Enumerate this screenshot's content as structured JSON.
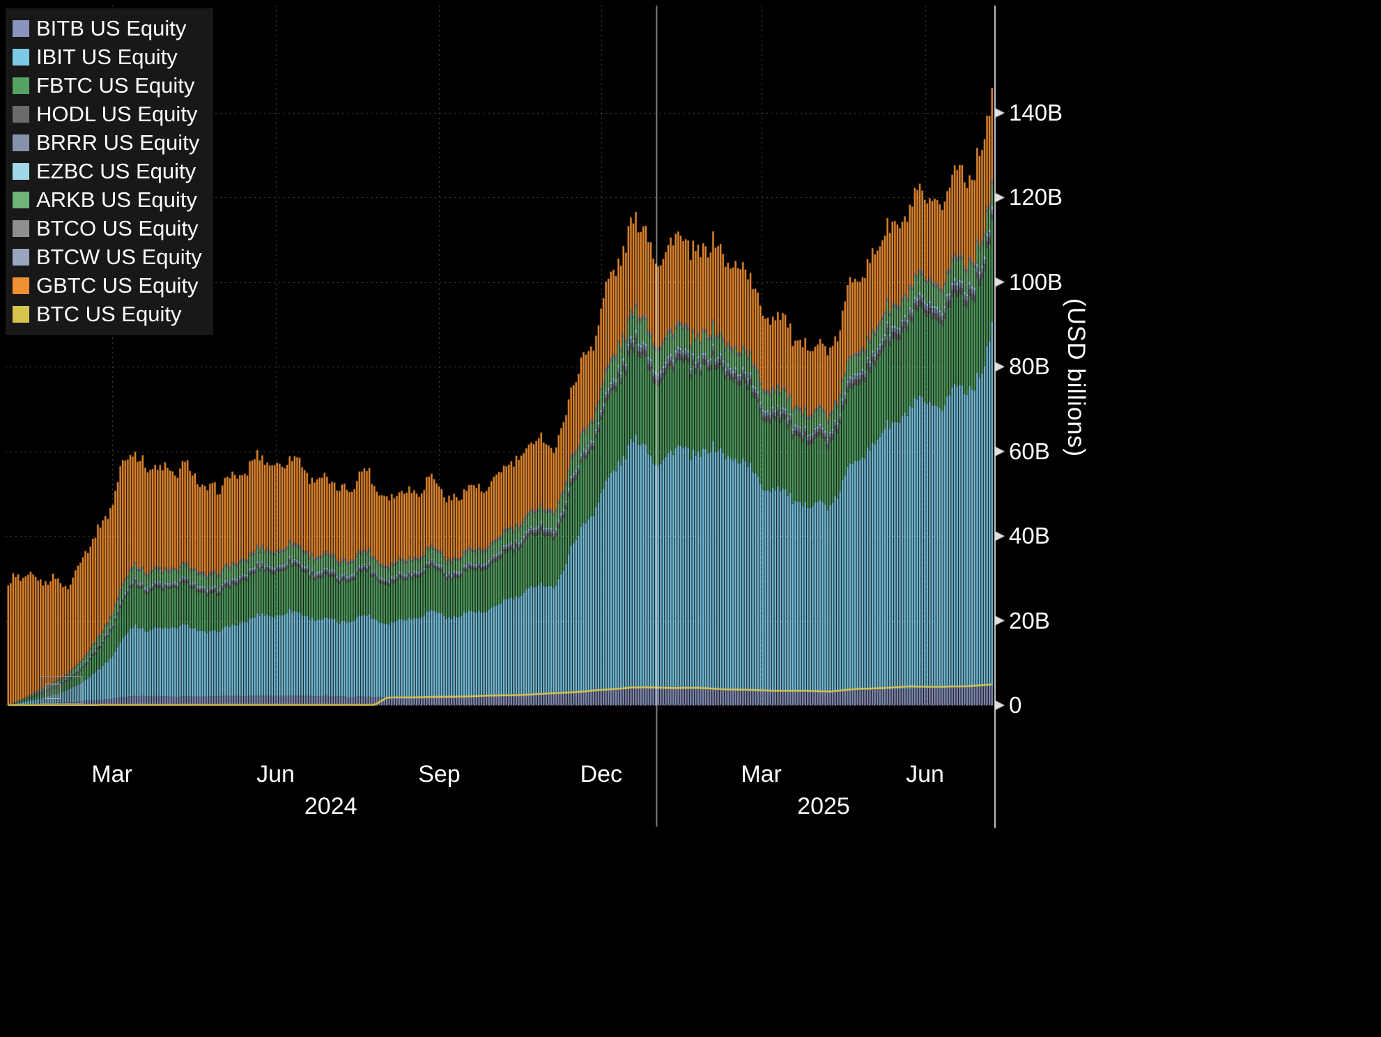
{
  "y_axis": {
    "title": "(USD billions)",
    "ticks": [
      {
        "label": "0",
        "value": 0
      },
      {
        "label": "20B",
        "value": 20
      },
      {
        "label": "40B",
        "value": 40
      },
      {
        "label": "60B",
        "value": 60
      },
      {
        "label": "80B",
        "value": 80
      },
      {
        "label": "100B",
        "value": 100
      },
      {
        "label": "120B",
        "value": 120
      },
      {
        "label": "140B",
        "value": 140
      }
    ]
  },
  "x_axis": {
    "month_ticks": [
      {
        "label": "Mar",
        "date": "2024-03-01"
      },
      {
        "label": "Jun",
        "date": "2024-06-01"
      },
      {
        "label": "Sep",
        "date": "2024-09-01"
      },
      {
        "label": "Dec",
        "date": "2024-12-01"
      },
      {
        "label": "Mar",
        "date": "2025-03-01"
      },
      {
        "label": "Jun",
        "date": "2025-06-01"
      }
    ],
    "year_labels": [
      {
        "label": "2024",
        "date": "2024-07-02"
      },
      {
        "label": "2025",
        "date": "2025-04-05"
      }
    ],
    "year_divider_date": "2025-01-01"
  },
  "chart_data": {
    "type": "bar",
    "stacked": true,
    "unit": "USD billions",
    "x_start": "2024-01-02",
    "x_end": "2025-07-08",
    "ylim": [
      0,
      165
    ],
    "grid": true,
    "legend_position": "top-left",
    "series": [
      {
        "name": "BITB US Equity",
        "ticker": "BITB",
        "color": "#8a94bd",
        "render": "stack",
        "keyframes": [
          [
            "2024-01-02",
            0.0
          ],
          [
            "2024-01-11",
            0.2
          ],
          [
            "2024-02-01",
            0.6
          ],
          [
            "2024-03-01",
            1.5
          ],
          [
            "2024-03-13",
            2.2
          ],
          [
            "2024-04-19",
            2.0
          ],
          [
            "2024-06-07",
            2.3
          ],
          [
            "2024-07-05",
            2.0
          ],
          [
            "2024-09-06",
            2.0
          ],
          [
            "2024-10-21",
            2.5
          ],
          [
            "2024-11-22",
            3.4
          ],
          [
            "2024-12-17",
            4.2
          ],
          [
            "2025-01-21",
            4.0
          ],
          [
            "2025-02-28",
            3.4
          ],
          [
            "2025-04-08",
            3.2
          ],
          [
            "2025-05-22",
            4.0
          ],
          [
            "2025-07-08",
            4.4
          ]
        ]
      },
      {
        "name": "IBIT US Equity",
        "ticker": "IBIT",
        "color": "#7dc9e6",
        "render": "stack",
        "keyframes": [
          [
            "2024-01-02",
            0.0
          ],
          [
            "2024-01-11",
            0.5
          ],
          [
            "2024-02-01",
            2.5
          ],
          [
            "2024-02-15",
            5.0
          ],
          [
            "2024-03-01",
            10.0
          ],
          [
            "2024-03-13",
            17.0
          ],
          [
            "2024-03-20",
            15.5
          ],
          [
            "2024-04-08",
            17.5
          ],
          [
            "2024-04-19",
            15.5
          ],
          [
            "2024-05-01",
            15.0
          ],
          [
            "2024-05-21",
            19.0
          ],
          [
            "2024-06-07",
            20.5
          ],
          [
            "2024-06-24",
            18.0
          ],
          [
            "2024-07-05",
            17.0
          ],
          [
            "2024-07-22",
            19.5
          ],
          [
            "2024-08-05",
            18.0
          ],
          [
            "2024-08-26",
            19.5
          ],
          [
            "2024-09-06",
            18.5
          ],
          [
            "2024-09-27",
            21.0
          ],
          [
            "2024-10-21",
            24.5
          ],
          [
            "2024-11-05",
            25.0
          ],
          [
            "2024-11-22",
            42.0
          ],
          [
            "2024-12-17",
            58.0
          ],
          [
            "2024-12-30",
            52.5
          ],
          [
            "2025-01-21",
            58.0
          ],
          [
            "2025-02-07",
            57.0
          ],
          [
            "2025-02-28",
            48.0
          ],
          [
            "2025-03-18",
            46.5
          ],
          [
            "2025-04-08",
            44.5
          ],
          [
            "2025-04-23",
            53.0
          ],
          [
            "2025-05-12",
            62.0
          ],
          [
            "2025-05-22",
            69.0
          ],
          [
            "2025-06-06",
            67.0
          ],
          [
            "2025-06-23",
            68.5
          ],
          [
            "2025-07-03",
            74.0
          ],
          [
            "2025-07-08",
            83.0
          ]
        ]
      },
      {
        "name": "FBTC US Equity",
        "ticker": "FBTC",
        "color": "#55a263",
        "render": "stack",
        "keyframes": [
          [
            "2024-01-02",
            0.0
          ],
          [
            "2024-01-11",
            0.3
          ],
          [
            "2024-02-01",
            2.0
          ],
          [
            "2024-02-15",
            3.5
          ],
          [
            "2024-03-01",
            6.5
          ],
          [
            "2024-03-13",
            10.0
          ],
          [
            "2024-03-20",
            9.0
          ],
          [
            "2024-04-08",
            10.0
          ],
          [
            "2024-04-19",
            9.0
          ],
          [
            "2024-05-01",
            8.5
          ],
          [
            "2024-05-21",
            10.5
          ],
          [
            "2024-06-07",
            11.0
          ],
          [
            "2024-06-24",
            9.8
          ],
          [
            "2024-07-05",
            9.2
          ],
          [
            "2024-07-22",
            10.5
          ],
          [
            "2024-08-05",
            9.5
          ],
          [
            "2024-08-26",
            10.0
          ],
          [
            "2024-09-06",
            9.0
          ],
          [
            "2024-09-27",
            10.5
          ],
          [
            "2024-10-21",
            11.8
          ],
          [
            "2024-11-05",
            11.5
          ],
          [
            "2024-11-22",
            16.0
          ],
          [
            "2024-12-17",
            21.0
          ],
          [
            "2024-12-30",
            19.0
          ],
          [
            "2025-01-21",
            20.5
          ],
          [
            "2025-02-07",
            19.5
          ],
          [
            "2025-02-28",
            16.5
          ],
          [
            "2025-03-18",
            16.0
          ],
          [
            "2025-04-08",
            15.0
          ],
          [
            "2025-04-23",
            17.5
          ],
          [
            "2025-05-12",
            19.5
          ],
          [
            "2025-05-22",
            21.0
          ],
          [
            "2025-06-06",
            20.5
          ],
          [
            "2025-06-23",
            20.5
          ],
          [
            "2025-07-08",
            23.0
          ]
        ]
      },
      {
        "name": "HODL US Equity",
        "ticker": "HODL",
        "color": "#6b6b6b",
        "render": "stack",
        "keyframes": [
          [
            "2024-01-02",
            0.0
          ],
          [
            "2024-01-11",
            0.1
          ],
          [
            "2024-03-13",
            0.5
          ],
          [
            "2024-06-07",
            0.6
          ],
          [
            "2024-09-06",
            0.5
          ],
          [
            "2024-11-22",
            0.9
          ],
          [
            "2024-12-17",
            1.3
          ],
          [
            "2025-02-28",
            1.1
          ],
          [
            "2025-04-08",
            1.1
          ],
          [
            "2025-05-22",
            1.4
          ],
          [
            "2025-07-08",
            1.5
          ]
        ]
      },
      {
        "name": "BRRR US Equity",
        "ticker": "BRRR",
        "color": "#8793ad",
        "render": "stack",
        "keyframes": [
          [
            "2024-01-02",
            0.0
          ],
          [
            "2024-01-11",
            0.1
          ],
          [
            "2024-03-13",
            0.5
          ],
          [
            "2024-06-07",
            0.55
          ],
          [
            "2024-09-06",
            0.5
          ],
          [
            "2024-11-22",
            0.8
          ],
          [
            "2024-12-17",
            1.1
          ],
          [
            "2025-02-28",
            1.0
          ],
          [
            "2025-04-08",
            0.9
          ],
          [
            "2025-05-22",
            1.1
          ],
          [
            "2025-07-08",
            1.2
          ]
        ]
      },
      {
        "name": "EZBC US Equity",
        "ticker": "EZBC",
        "color": "#9fd8e8",
        "render": "stack",
        "keyframes": [
          [
            "2024-01-02",
            0.0
          ],
          [
            "2024-01-11",
            0.05
          ],
          [
            "2024-03-13",
            0.35
          ],
          [
            "2024-06-07",
            0.4
          ],
          [
            "2024-09-06",
            0.35
          ],
          [
            "2024-11-22",
            0.5
          ],
          [
            "2024-12-17",
            0.65
          ],
          [
            "2025-02-28",
            0.55
          ],
          [
            "2025-04-08",
            0.5
          ],
          [
            "2025-05-22",
            0.6
          ],
          [
            "2025-07-08",
            0.65
          ]
        ]
      },
      {
        "name": "ARKB US Equity",
        "ticker": "ARKB",
        "color": "#6fb577",
        "render": "stack",
        "keyframes": [
          [
            "2024-01-02",
            0.0
          ],
          [
            "2024-01-11",
            0.2
          ],
          [
            "2024-02-01",
            0.6
          ],
          [
            "2024-03-01",
            2.0
          ],
          [
            "2024-03-13",
            2.9
          ],
          [
            "2024-04-19",
            2.7
          ],
          [
            "2024-06-07",
            3.2
          ],
          [
            "2024-07-05",
            2.8
          ],
          [
            "2024-09-06",
            2.6
          ],
          [
            "2024-10-21",
            3.2
          ],
          [
            "2024-11-22",
            4.2
          ],
          [
            "2024-12-17",
            5.2
          ],
          [
            "2025-01-21",
            4.9
          ],
          [
            "2025-02-28",
            4.0
          ],
          [
            "2025-04-08",
            3.8
          ],
          [
            "2025-05-22",
            4.6
          ],
          [
            "2025-07-08",
            5.0
          ]
        ]
      },
      {
        "name": "BTCO US Equity",
        "ticker": "BTCO",
        "color": "#8f8f8f",
        "render": "stack",
        "keyframes": [
          [
            "2024-01-02",
            0.0
          ],
          [
            "2024-01-11",
            0.1
          ],
          [
            "2024-03-13",
            0.4
          ],
          [
            "2024-06-07",
            0.45
          ],
          [
            "2024-09-06",
            0.4
          ],
          [
            "2024-11-22",
            0.5
          ],
          [
            "2024-12-17",
            0.6
          ],
          [
            "2025-02-28",
            0.5
          ],
          [
            "2025-04-08",
            0.45
          ],
          [
            "2025-05-22",
            0.55
          ],
          [
            "2025-07-08",
            0.6
          ]
        ]
      },
      {
        "name": "BTCW US Equity",
        "ticker": "BTCW",
        "color": "#9aa6c0",
        "render": "stack",
        "keyframes": [
          [
            "2024-01-02",
            0.0
          ],
          [
            "2024-01-11",
            0.05
          ],
          [
            "2024-03-13",
            0.2
          ],
          [
            "2024-06-07",
            0.25
          ],
          [
            "2024-09-06",
            0.2
          ],
          [
            "2024-11-22",
            0.3
          ],
          [
            "2024-12-17",
            0.35
          ],
          [
            "2025-02-28",
            0.3
          ],
          [
            "2025-04-08",
            0.28
          ],
          [
            "2025-05-22",
            0.33
          ],
          [
            "2025-07-08",
            0.35
          ]
        ]
      },
      {
        "name": "GBTC US Equity",
        "ticker": "GBTC",
        "color": "#ef8f33",
        "render": "stack",
        "keyframes": [
          [
            "2024-01-02",
            27.0
          ],
          [
            "2024-01-11",
            28.5
          ],
          [
            "2024-01-23",
            25.0
          ],
          [
            "2024-02-06",
            22.0
          ],
          [
            "2024-02-15",
            24.5
          ],
          [
            "2024-02-26",
            25.5
          ],
          [
            "2024-03-13",
            27.0
          ],
          [
            "2024-03-20",
            24.0
          ],
          [
            "2024-04-08",
            24.0
          ],
          [
            "2024-04-19",
            21.0
          ],
          [
            "2024-05-01",
            19.0
          ],
          [
            "2024-05-21",
            21.5
          ],
          [
            "2024-06-07",
            20.5
          ],
          [
            "2024-06-24",
            18.0
          ],
          [
            "2024-07-05",
            16.0
          ],
          [
            "2024-07-22",
            18.5
          ],
          [
            "2024-08-05",
            16.0
          ],
          [
            "2024-08-26",
            15.5
          ],
          [
            "2024-09-06",
            14.0
          ],
          [
            "2024-09-27",
            14.8
          ],
          [
            "2024-10-21",
            15.8
          ],
          [
            "2024-11-05",
            14.5
          ],
          [
            "2024-11-22",
            18.0
          ],
          [
            "2024-12-17",
            21.0
          ],
          [
            "2024-12-30",
            19.5
          ],
          [
            "2025-01-21",
            21.0
          ],
          [
            "2025-02-07",
            20.0
          ],
          [
            "2025-02-28",
            17.0
          ],
          [
            "2025-03-18",
            16.5
          ],
          [
            "2025-04-08",
            15.0
          ],
          [
            "2025-04-23",
            17.0
          ],
          [
            "2025-05-12",
            18.5
          ],
          [
            "2025-05-22",
            19.5
          ],
          [
            "2025-06-06",
            19.0
          ],
          [
            "2025-06-23",
            19.5
          ],
          [
            "2025-07-08",
            21.5
          ]
        ]
      },
      {
        "name": "BTC US Equity",
        "ticker": "BTC",
        "color": "#d6c44e",
        "render": "line",
        "keyframes": [
          [
            "2024-01-02",
            0.05
          ],
          [
            "2024-07-26",
            0.1
          ],
          [
            "2024-08-02",
            1.8
          ],
          [
            "2024-09-06",
            2.0
          ],
          [
            "2024-10-21",
            2.5
          ],
          [
            "2024-11-22",
            3.3
          ],
          [
            "2024-12-17",
            4.2
          ],
          [
            "2025-01-21",
            4.1
          ],
          [
            "2025-02-28",
            3.5
          ],
          [
            "2025-04-08",
            3.3
          ],
          [
            "2025-04-23",
            3.8
          ],
          [
            "2025-05-22",
            4.4
          ],
          [
            "2025-06-23",
            4.4
          ],
          [
            "2025-07-08",
            5.0
          ]
        ]
      }
    ]
  }
}
